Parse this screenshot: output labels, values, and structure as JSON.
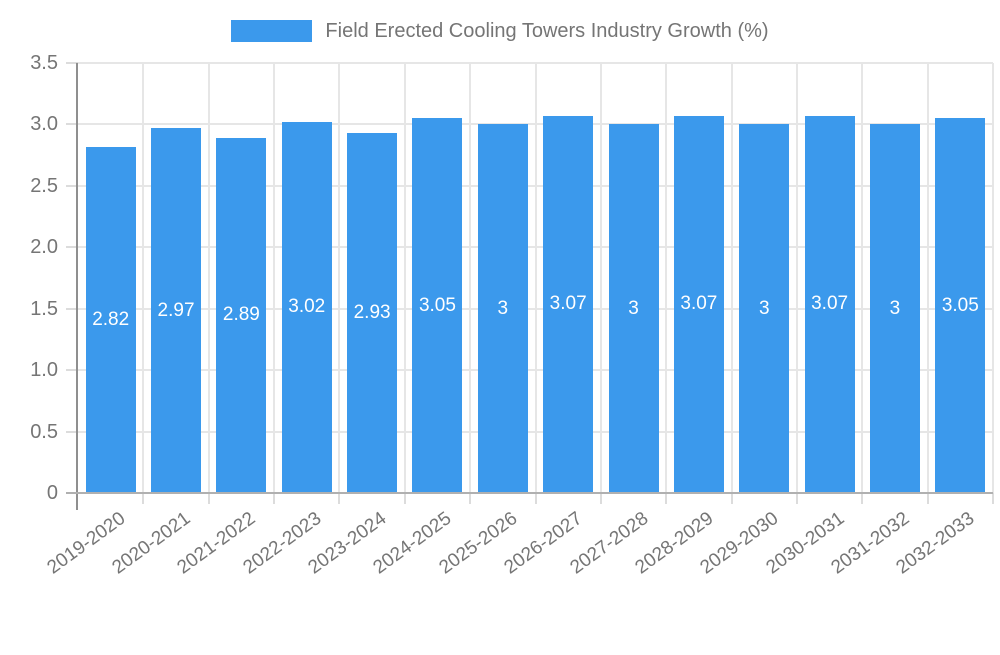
{
  "chart_data": {
    "type": "bar",
    "legend_label": "Field Erected Cooling Towers Industry Growth (%)",
    "legend_position": "top",
    "categories": [
      "2019-2020",
      "2020-2021",
      "2021-2022",
      "2022-2023",
      "2023-2024",
      "2024-2025",
      "2025-2026",
      "2026-2027",
      "2027-2028",
      "2028-2029",
      "2029-2030",
      "2030-2031",
      "2031-2032",
      "2032-2033"
    ],
    "values": [
      2.82,
      2.97,
      2.89,
      3.02,
      2.93,
      3.05,
      3,
      3.07,
      3,
      3.07,
      3,
      3.07,
      3,
      3.05
    ],
    "data_labels": [
      "2.82",
      "2.97",
      "2.89",
      "3.02",
      "2.93",
      "3.05",
      "3",
      "3.07",
      "3",
      "3.07",
      "3",
      "3.07",
      "3",
      "3.05"
    ],
    "xlabel": "",
    "ylabel": "",
    "ylim": [
      0,
      3.5
    ],
    "yticks": [
      "0",
      "0.5",
      "1.0",
      "1.5",
      "2.0",
      "2.5",
      "3.0",
      "3.5"
    ],
    "grid": true,
    "colors": {
      "bar": "#3B99EC",
      "grid": "#E6E6E6",
      "tick": "#DCDCDC",
      "baseline": "#B0B0B0",
      "y_axis_line": "#8F8F8F",
      "axis_text": "#757575",
      "data_label_text": "#FFFFFF",
      "background": "#FFFFFF"
    }
  }
}
